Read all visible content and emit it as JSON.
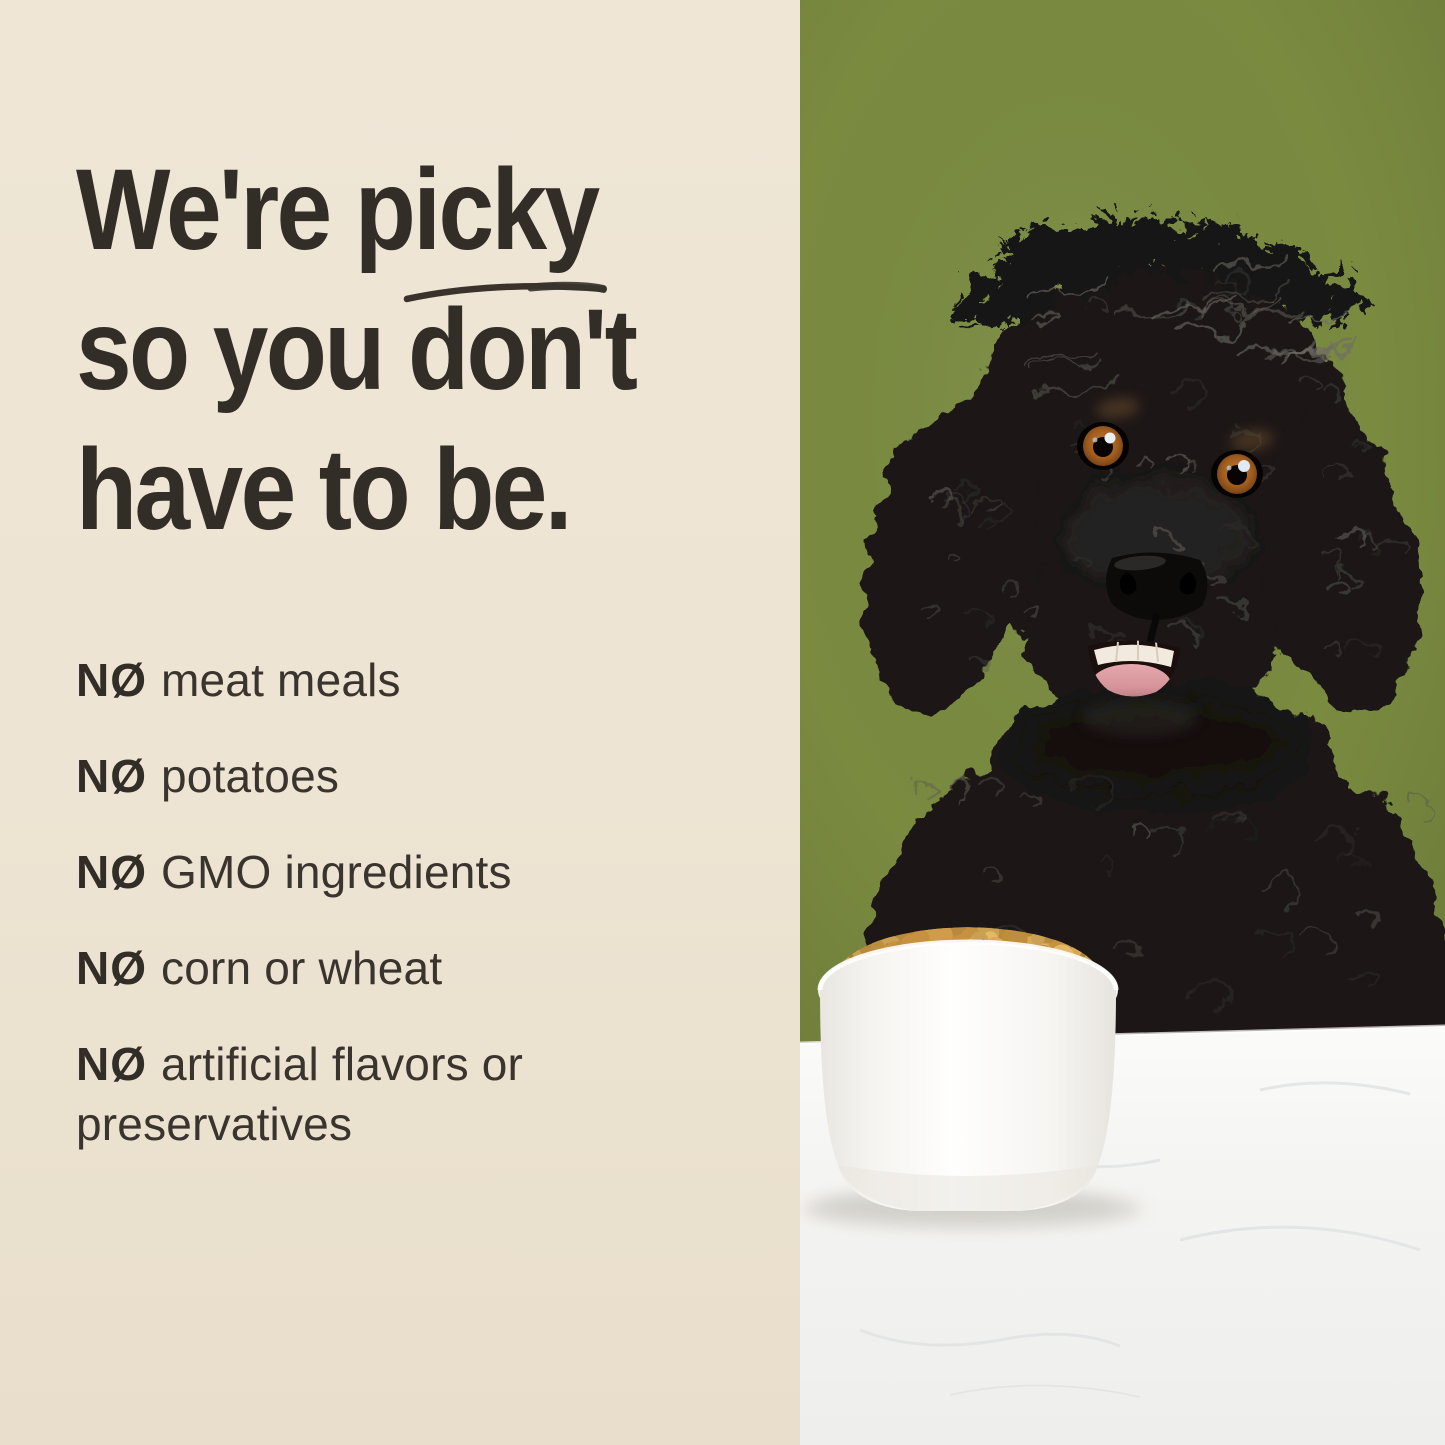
{
  "headline": {
    "line1_pre": "We're ",
    "line1_underlined": "picky",
    "line2": "so you don't",
    "line3": "have to be."
  },
  "no_list": [
    {
      "no": "NØ",
      "text": "meat meals"
    },
    {
      "no": "NØ",
      "text": "potatoes"
    },
    {
      "no": "NØ",
      "text": "GMO ingredients"
    },
    {
      "no": "NØ",
      "text": "corn or wheat"
    },
    {
      "no": "NØ",
      "text": "artificial flavors or preservatives"
    }
  ],
  "colors": {
    "panel_cream": "#EDE4D3",
    "ink": "#332D28",
    "photo_green": "#7A8B40",
    "table_white": "#F4F4F2",
    "bowl_white": "#FDFDFB",
    "dog_black": "#1A1816",
    "kibble_tan": "#CFA052",
    "eye_amber": "#A96526",
    "tongue_pink": "#DC9AA0"
  }
}
